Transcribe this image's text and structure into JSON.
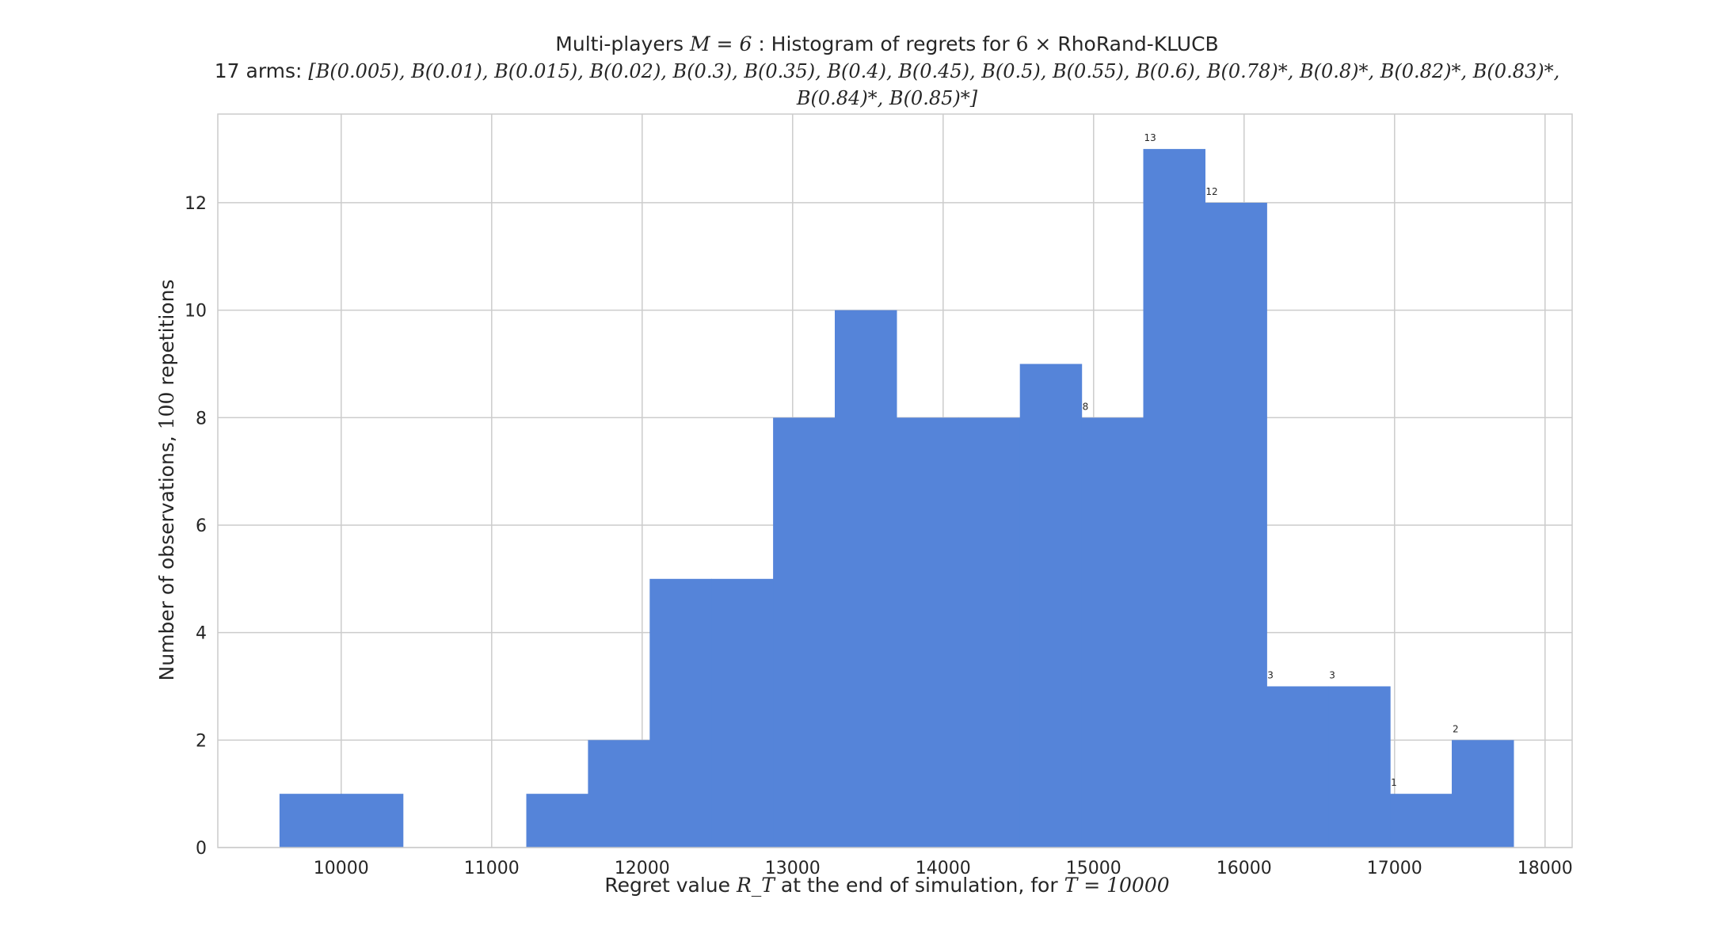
{
  "title": {
    "line1_pre": "Multi-players",
    "line1_math_m": "M = 6",
    "line1_mid": ": Histogram of regrets for",
    "line1_math_mult": "6 ×",
    "line1_post": "RhoRand-KLUCB",
    "line2_pre": "17 arms:",
    "line2_math": "[B(0.005), B(0.01), B(0.015), B(0.02), B(0.3), B(0.35), B(0.4), B(0.45), B(0.5), B(0.55), B(0.6), B(0.78)*, B(0.8)*, B(0.82)*, B(0.83)*,",
    "line3_math": "B(0.84)*, B(0.85)*]"
  },
  "colors": {
    "bar": "#5584d9",
    "grid": "#cccccc",
    "axis": "#cccccc",
    "text": "#262626"
  },
  "chart_data": {
    "type": "bar",
    "xlabel_pre": "Regret value",
    "xlabel_math": "R_T",
    "xlabel_mid": "at the end of simulation, for",
    "xlabel_math2": "T = 10000",
    "ylabel_pre": "Number of observations,",
    "ylabel_math": "100",
    "ylabel_post": "repetitions",
    "xlim": [
      9180,
      18180
    ],
    "ylim": [
      0,
      13.65
    ],
    "xticks": [
      10000,
      11000,
      12000,
      13000,
      14000,
      15000,
      16000,
      17000,
      18000
    ],
    "yticks": [
      0,
      2,
      4,
      6,
      8,
      10,
      12
    ],
    "grid": true,
    "bars": [
      {
        "x0": 9590,
        "x1": 10000,
        "value": 1,
        "label": ""
      },
      {
        "x0": 10000,
        "x1": 10410,
        "value": 1,
        "label": ""
      },
      {
        "x0": 11230,
        "x1": 11640,
        "value": 1,
        "label": ""
      },
      {
        "x0": 11640,
        "x1": 12050,
        "value": 2,
        "label": ""
      },
      {
        "x0": 12050,
        "x1": 12460,
        "value": 5,
        "label": ""
      },
      {
        "x0": 12460,
        "x1": 12870,
        "value": 5,
        "label": ""
      },
      {
        "x0": 12870,
        "x1": 13280,
        "value": 8,
        "label": ""
      },
      {
        "x0": 13280,
        "x1": 13690,
        "value": 10,
        "label": ""
      },
      {
        "x0": 13690,
        "x1": 14100,
        "value": 8,
        "label": ""
      },
      {
        "x0": 14100,
        "x1": 14510,
        "value": 8,
        "label": ""
      },
      {
        "x0": 14510,
        "x1": 14920,
        "value": 9,
        "label": ""
      },
      {
        "x0": 14920,
        "x1": 15330,
        "value": 8,
        "label": "8"
      },
      {
        "x0": 15330,
        "x1": 15740,
        "value": 13,
        "label": "13"
      },
      {
        "x0": 15740,
        "x1": 16150,
        "value": 12,
        "label": "12"
      },
      {
        "x0": 16150,
        "x1": 16560,
        "value": 3,
        "label": "3"
      },
      {
        "x0": 16560,
        "x1": 16970,
        "value": 3,
        "label": "3"
      },
      {
        "x0": 16970,
        "x1": 17380,
        "value": 1,
        "label": "1"
      },
      {
        "x0": 17380,
        "x1": 17790,
        "value": 2,
        "label": "2"
      }
    ]
  }
}
